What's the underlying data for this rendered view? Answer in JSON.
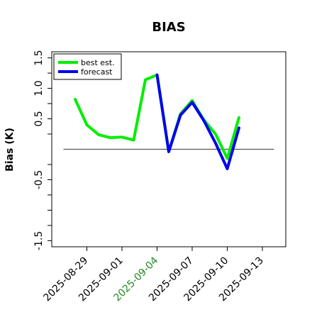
{
  "chart_data": {
    "type": "line",
    "title": "BIAS",
    "ylabel": "Bias (K)",
    "xlabel": "",
    "xlim": [
      "2025-08-26",
      "2025-09-15"
    ],
    "ylim": [
      -1.6,
      1.6
    ],
    "yticks": [
      {
        "value": 1.5,
        "label": "1.5"
      },
      {
        "value": 1.0,
        "label": "1.0"
      },
      {
        "value": 0.5,
        "label": "0.5"
      },
      {
        "value": -0.5,
        "label": "-0.5"
      },
      {
        "value": -1.5,
        "label": "-1.5"
      }
    ],
    "yminor": [
      1.25,
      0.75,
      0.25,
      -0.25,
      -0.75,
      -1.0,
      -1.25
    ],
    "xticks": [
      {
        "date": "2025-08-29",
        "label": "2025-08-29",
        "color": "#000000"
      },
      {
        "date": "2025-09-01",
        "label": "2025-09-01",
        "color": "#000000"
      },
      {
        "date": "2025-09-04",
        "label": "2025-09-04",
        "color": "#228B22"
      },
      {
        "date": "2025-09-07",
        "label": "2025-09-07",
        "color": "#000000"
      },
      {
        "date": "2025-09-10",
        "label": "2025-09-10",
        "color": "#000000"
      },
      {
        "date": "2025-09-13",
        "label": "2025-09-13",
        "color": "#000000"
      }
    ],
    "reference_line": {
      "y": 0,
      "from": "2025-08-27",
      "to": "2025-09-14",
      "color": "#555555"
    },
    "legend_position": "top-left",
    "series": [
      {
        "name": "best est.",
        "color": "#00ee00",
        "x": [
          "2025-08-28",
          "2025-08-29",
          "2025-08-30",
          "2025-08-31",
          "2025-09-01",
          "2025-09-02",
          "2025-09-03",
          "2025-09-04",
          "2025-09-05",
          "2025-09-06",
          "2025-09-07",
          "2025-09-08",
          "2025-09-09",
          "2025-09-10",
          "2025-09-11"
        ],
        "y": [
          0.82,
          0.4,
          0.24,
          0.19,
          0.2,
          0.15,
          1.14,
          1.22,
          -0.04,
          0.58,
          0.8,
          0.48,
          0.25,
          -0.15,
          0.52
        ]
      },
      {
        "name": "forecast",
        "color": "#0000ee",
        "x": [
          "2025-09-04",
          "2025-09-05",
          "2025-09-06",
          "2025-09-07",
          "2025-09-08",
          "2025-09-09",
          "2025-09-10",
          "2025-09-11"
        ],
        "y": [
          1.22,
          -0.04,
          0.56,
          0.77,
          0.47,
          0.1,
          -0.32,
          0.35
        ]
      }
    ]
  }
}
